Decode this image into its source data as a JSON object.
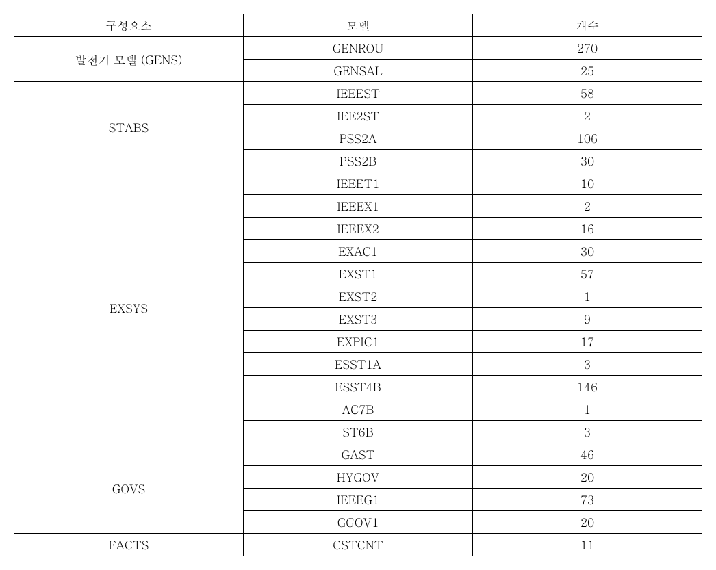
{
  "headers": {
    "component": "구성요소",
    "model": "모델",
    "count": "개수"
  },
  "groups": [
    {
      "name": "발전기 모델 (GENS)",
      "rows": [
        {
          "model": "GENROU",
          "count": "270"
        },
        {
          "model": "GENSAL",
          "count": "25"
        }
      ]
    },
    {
      "name": "STABS",
      "rows": [
        {
          "model": "IEEEST",
          "count": "58"
        },
        {
          "model": "IEE2ST",
          "count": "2"
        },
        {
          "model": "PSS2A",
          "count": "106"
        },
        {
          "model": "PSS2B",
          "count": "30"
        }
      ]
    },
    {
      "name": "EXSYS",
      "rows": [
        {
          "model": "IEEET1",
          "count": "10"
        },
        {
          "model": "IEEEX1",
          "count": "2"
        },
        {
          "model": "IEEEX2",
          "count": "16"
        },
        {
          "model": "EXAC1",
          "count": "30"
        },
        {
          "model": "EXST1",
          "count": "57"
        },
        {
          "model": "EXST2",
          "count": "1"
        },
        {
          "model": "EXST3",
          "count": "9"
        },
        {
          "model": "EXPIC1",
          "count": "17"
        },
        {
          "model": "ESST1A",
          "count": "3"
        },
        {
          "model": "ESST4B",
          "count": "146"
        },
        {
          "model": "AC7B",
          "count": "1"
        },
        {
          "model": "ST6B",
          "count": "3"
        }
      ]
    },
    {
      "name": "GOVS",
      "rows": [
        {
          "model": "GAST",
          "count": "46"
        },
        {
          "model": "HYGOV",
          "count": "20"
        },
        {
          "model": "IEEEG1",
          "count": "73"
        },
        {
          "model": "GGOV1",
          "count": "20"
        }
      ]
    },
    {
      "name": "FACTS",
      "rows": [
        {
          "model": "CSTCNT",
          "count": "11"
        }
      ]
    }
  ]
}
